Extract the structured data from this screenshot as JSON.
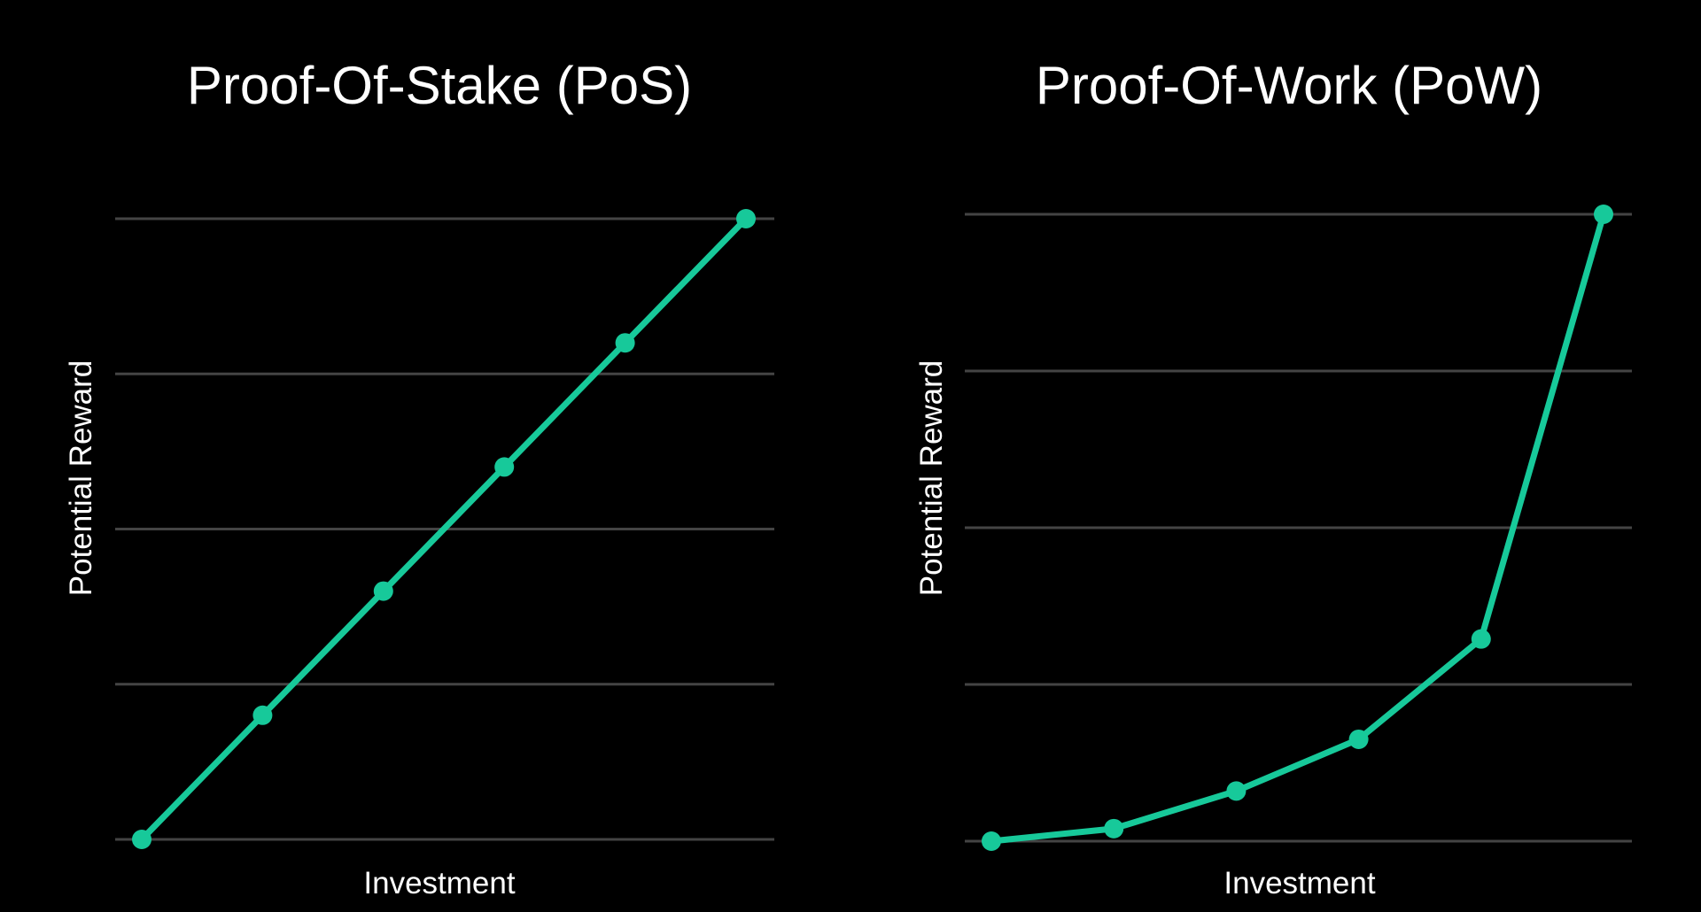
{
  "colors": {
    "background": "#000000",
    "line": "#17c99a",
    "grid": "#444444",
    "text": "#ffffff"
  },
  "chart_data": [
    {
      "type": "line",
      "title": "Proof-Of-Stake (PoS)",
      "xlabel": "Investment",
      "ylabel": "Potential Reward",
      "x": [
        0,
        1,
        2,
        3,
        4,
        5
      ],
      "values": [
        0,
        0.8,
        1.6,
        2.4,
        3.2,
        4.0
      ],
      "ylim": [
        0,
        4
      ],
      "grid": true,
      "ticks_labeled": false
    },
    {
      "type": "line",
      "title": "Proof-Of-Work (PoW)",
      "xlabel": "Investment",
      "ylabel": "Potential Reward",
      "x": [
        0,
        1,
        2,
        3,
        4,
        5
      ],
      "values": [
        0,
        0.08,
        0.32,
        0.65,
        1.29,
        4.0
      ],
      "ylim": [
        0,
        4
      ],
      "grid": true,
      "ticks_labeled": false
    }
  ]
}
